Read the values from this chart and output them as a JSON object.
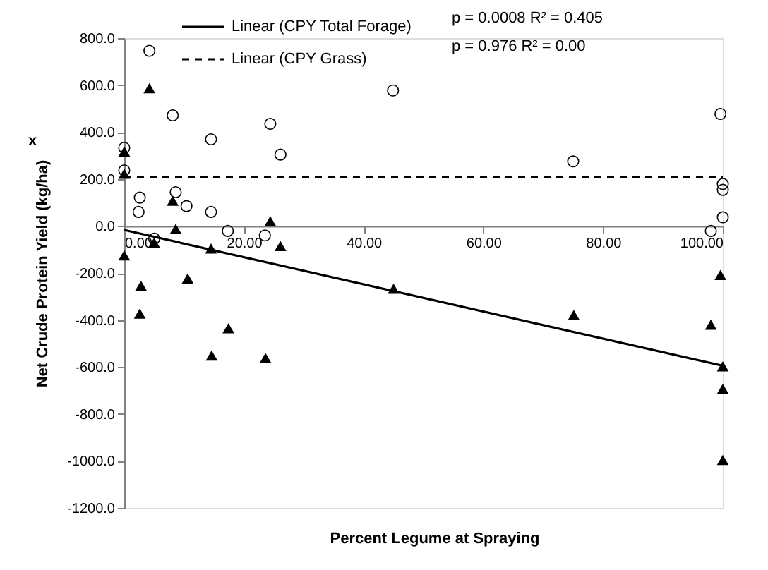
{
  "chart_data": {
    "type": "scatter",
    "xlabel": "Percent Legume at Spraying",
    "ylabel": "Net Crude Protein Yield (kg/ha)",
    "xlim": [
      0,
      100
    ],
    "xticks": [
      {
        "value": 0,
        "label": "0.00"
      },
      {
        "value": 20,
        "label": "20.00"
      },
      {
        "value": 40,
        "label": "40.00"
      },
      {
        "value": 60,
        "label": "60.00"
      },
      {
        "value": 80,
        "label": "80.00"
      },
      {
        "value": 100,
        "label": "100.00"
      }
    ],
    "ylim": [
      -1200,
      800
    ],
    "yticks": [
      {
        "value": -1200,
        "label": "-1200.0"
      },
      {
        "value": -1000,
        "label": "-1000.0"
      },
      {
        "value": -800,
        "label": "-800.0"
      },
      {
        "value": -600,
        "label": "-600.0"
      },
      {
        "value": -400,
        "label": "-400.0"
      },
      {
        "value": -200,
        "label": "-200.0"
      },
      {
        "value": 0,
        "label": "0.0"
      },
      {
        "value": 200,
        "label": "200.0"
      },
      {
        "value": 400,
        "label": "400.0"
      },
      {
        "value": 600,
        "label": "600.0"
      },
      {
        "value": 800,
        "label": "800.0"
      }
    ],
    "grid": false,
    "legend": "top",
    "series": [
      {
        "type": "scatter",
        "marker": "circle",
        "color": "#000000",
        "x": [
          0,
          0,
          4.2,
          2.6,
          2.4,
          5.0,
          8.1,
          8.6,
          10.4,
          14.5,
          14.5,
          17.3,
          23.5,
          24.4,
          26.1,
          44.9,
          75.0,
          98.0,
          99.6,
          100,
          100,
          100
        ],
        "values": [
          333,
          237,
          746,
          121,
          60,
          -54,
          471,
          144,
          85,
          369,
          60,
          -21,
          -40,
          435,
          304,
          577,
          275,
          -21,
          477,
          179,
          154,
          37
        ]
      },
      {
        "type": "scatter",
        "marker": "triangle",
        "color": "#000000",
        "x": [
          4.2,
          0,
          0,
          8.1,
          8.6,
          24.4,
          26.1,
          5.0,
          0,
          14.5,
          2.8,
          2.6,
          10.6,
          14.6,
          17.4,
          23.6,
          45.0,
          75.1,
          99.6,
          98.0,
          100,
          100,
          100
        ],
        "values": [
          587,
          317,
          223,
          108,
          -12,
          21,
          -85,
          -71,
          -125,
          -96,
          -254,
          -373,
          -223,
          -551,
          -435,
          -562,
          -267,
          -379,
          -208,
          -420,
          -597,
          -693,
          -996
        ]
      },
      {
        "type": "line",
        "name": "Linear (CPY Total Forage)",
        "line_style": "solid",
        "color": "#000000",
        "x": [
          0,
          100
        ],
        "values": [
          -17,
          -595
        ]
      },
      {
        "type": "line",
        "name": "Linear (CPY Grass)",
        "line_style": "dashed",
        "color": "#000000",
        "x": [
          0,
          100
        ],
        "values": [
          208,
          208
        ]
      }
    ],
    "annotations": [
      "p = 0.0008  R² = 0.405",
      "p = 0.976    R² = 0.00",
      "x"
    ]
  }
}
